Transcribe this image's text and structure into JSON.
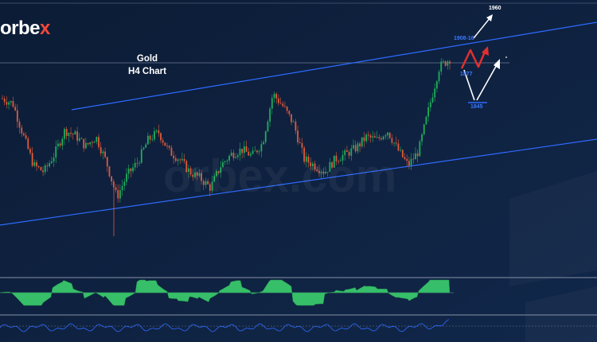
{
  "brand": {
    "logo_main": "orbe",
    "logo_accent": "x"
  },
  "header": {
    "title_line1": "Gold",
    "title_line2": "H4 Chart"
  },
  "watermark": "orbex.com",
  "levels": {
    "target_high": "1960",
    "resistance": "1908-16",
    "pivot": "1877",
    "support": "1845"
  },
  "colors": {
    "background": "#0d1f3a",
    "channel": "#2f6bff",
    "candle_up": "#1fae5a",
    "candle_down": "#e05a3a",
    "histogram": "#3ccf6e",
    "oscillator": "#2f6bff",
    "red_path": "#e03030",
    "white_path": "#ffffff"
  },
  "chart_data": {
    "type": "candlestick",
    "title": "Gold H4 Chart",
    "x": "time (H4 bars, unlabeled)",
    "close_path": [
      1878,
      1875,
      1855,
      1836,
      1832,
      1843,
      1858,
      1855,
      1848,
      1854,
      1838,
      1816,
      1830,
      1838,
      1852,
      1857,
      1845,
      1840,
      1832,
      1828,
      1822,
      1836,
      1843,
      1846,
      1842,
      1850,
      1881,
      1873,
      1862,
      1840,
      1836,
      1832,
      1840,
      1843,
      1847,
      1854,
      1852,
      1858,
      1846,
      1836,
      1845,
      1872,
      1898,
      1903
    ],
    "price_channel": {
      "upper": "rising resistance line",
      "lower": "rising support line"
    },
    "scenario_levels": [
      1960,
      1908,
      1916,
      1877,
      1845
    ],
    "indicators": [
      "histogram oscillator",
      "line oscillator"
    ]
  }
}
